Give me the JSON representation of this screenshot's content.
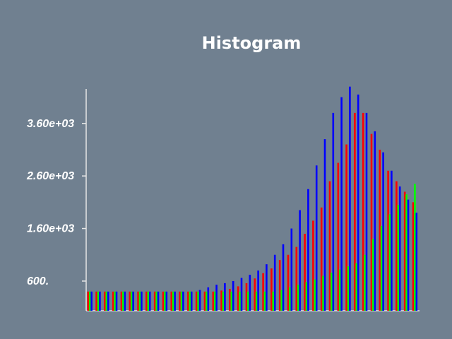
{
  "chart_data": {
    "type": "bar",
    "title": "Histogram",
    "xlabel": "",
    "ylabel": "",
    "ylim": [
      0,
      3800
    ],
    "yticks": [
      {
        "value": 600,
        "label": "600."
      },
      {
        "value": 1600,
        "label": "1.60e+03"
      },
      {
        "value": 2600,
        "label": "2.60e+03"
      },
      {
        "value": 3600,
        "label": "3.60e+03"
      }
    ],
    "grid": false,
    "legend": "none",
    "bin_count": 40,
    "series": [
      {
        "color": "#ff0000",
        "values": [
          400,
          400,
          400,
          400,
          400,
          400,
          400,
          400,
          400,
          400,
          400,
          400,
          400,
          400,
          400,
          400,
          420,
          450,
          500,
          560,
          650,
          750,
          840,
          1000,
          1100,
          1250,
          1500,
          1750,
          2000,
          2500,
          2850,
          3200,
          3800,
          3800,
          3400,
          3100,
          2700,
          2500,
          2300,
          2100
        ]
      },
      {
        "color": "#00ff00",
        "values": [
          400,
          400,
          400,
          400,
          400,
          400,
          400,
          400,
          400,
          400,
          400,
          400,
          400,
          400,
          400,
          400,
          400,
          400,
          400,
          400,
          400,
          400,
          400,
          430,
          480,
          530,
          580,
          630,
          700,
          760,
          820,
          880,
          940,
          1100,
          1400,
          1650,
          1870,
          2050,
          2250,
          2450
        ]
      },
      {
        "color": "#0000ff",
        "values": [
          400,
          400,
          400,
          400,
          400,
          400,
          400,
          400,
          400,
          400,
          400,
          400,
          400,
          430,
          480,
          530,
          560,
          600,
          660,
          720,
          800,
          920,
          1100,
          1300,
          1600,
          1950,
          2350,
          2800,
          3300,
          3800,
          4100,
          4300,
          4150,
          3800,
          3450,
          3050,
          2700,
          2400,
          2150,
          1900
        ]
      }
    ]
  }
}
